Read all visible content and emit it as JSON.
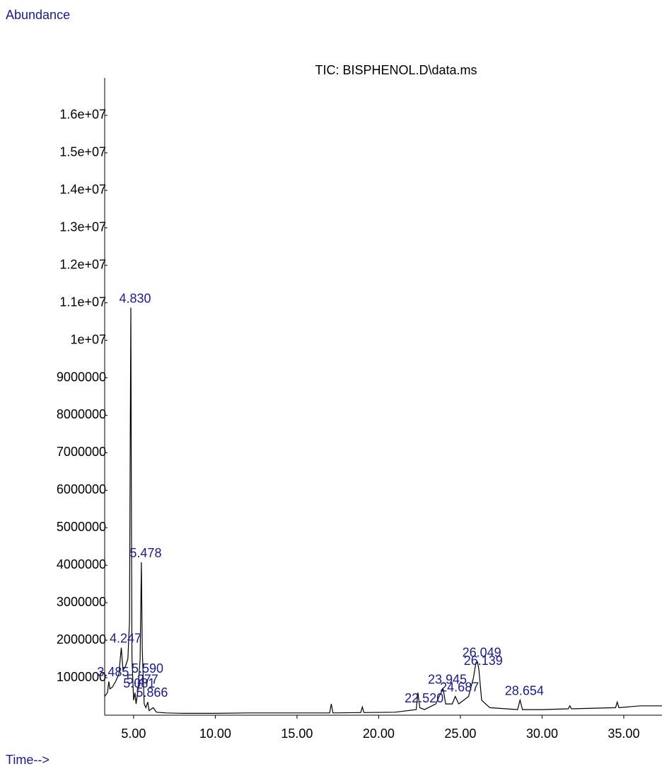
{
  "chart_data": {
    "type": "line",
    "title": "TIC: BISPHENOL.D\\data.ms",
    "ylabel": "Abundance",
    "xlabel": "Time-->",
    "color": "#000000",
    "label_color": "#1a1a8c",
    "x": [
      3.23,
      3.4,
      3.485,
      3.55,
      3.7,
      3.9,
      4.1,
      4.247,
      4.35,
      4.5,
      4.65,
      4.75,
      4.8,
      4.83,
      4.86,
      4.9,
      5.0,
      5.081,
      5.15,
      5.277,
      5.4,
      5.478,
      5.53,
      5.59,
      5.65,
      5.75,
      5.866,
      5.95,
      6.2,
      6.4,
      7,
      8,
      10,
      12,
      15,
      17,
      17.1,
      17.2,
      18.9,
      19.0,
      19.1,
      21,
      22.3,
      22.4,
      22.52,
      22.8,
      23.5,
      23.7,
      23.945,
      24.1,
      24.5,
      24.687,
      24.9,
      25.5,
      25.8,
      25.95,
      26.049,
      26.139,
      26.3,
      26.8,
      28.5,
      28.654,
      28.8,
      30,
      31.6,
      31.7,
      31.8,
      34.5,
      34.6,
      34.7,
      36,
      37.34
    ],
    "values": [
      500000,
      600000,
      900000,
      700000,
      750000,
      900000,
      1100000,
      1800000,
      1200000,
      1300000,
      1500000,
      2500000,
      8000000,
      10870000,
      6000000,
      1500000,
      400000,
      600000,
      300000,
      700000,
      1500000,
      4080000,
      1800000,
      1000000,
      300000,
      200000,
      350000,
      120000,
      200000,
      80000,
      60000,
      50000,
      50000,
      60000,
      60000,
      60000,
      300000,
      60000,
      70000,
      220000,
      70000,
      80000,
      150000,
      600000,
      200000,
      150000,
      300000,
      500000,
      700000,
      300000,
      300000,
      500000,
      300000,
      500000,
      1000000,
      1400000,
      1420000,
      1200000,
      400000,
      200000,
      150000,
      400000,
      150000,
      150000,
      170000,
      250000,
      170000,
      200000,
      350000,
      200000,
      250000,
      250000
    ],
    "annotations": [
      {
        "label": "3.485",
        "x": 3.485,
        "y": 900000
      },
      {
        "label": "4.247",
        "x": 4.247,
        "y": 1800000
      },
      {
        "label": "4.830",
        "x": 4.83,
        "y": 10870000
      },
      {
        "label": "5.081",
        "x": 5.081,
        "y": 600000
      },
      {
        "label": "5.277",
        "x": 5.277,
        "y": 700000
      },
      {
        "label": "5.478",
        "x": 5.478,
        "y": 4080000
      },
      {
        "label": "5.590",
        "x": 5.59,
        "y": 1000000
      },
      {
        "label": "5.866",
        "x": 5.866,
        "y": 350000
      },
      {
        "label": "22.520",
        "x": 22.52,
        "y": 200000
      },
      {
        "label": "23.945",
        "x": 23.945,
        "y": 700000
      },
      {
        "label": "24.687",
        "x": 24.687,
        "y": 500000
      },
      {
        "label": "26.049",
        "x": 26.049,
        "y": 1420000
      },
      {
        "label": "26.139",
        "x": 26.139,
        "y": 1200000
      },
      {
        "label": "28.654",
        "x": 28.654,
        "y": 400000
      }
    ],
    "xlim": [
      3.23,
      37.34
    ],
    "ylim": [
      0,
      17000000
    ],
    "xticks": [
      {
        "value": 5,
        "label": "5.00"
      },
      {
        "value": 10,
        "label": "10.00"
      },
      {
        "value": 15,
        "label": "15.00"
      },
      {
        "value": 20,
        "label": "20.00"
      },
      {
        "value": 25,
        "label": "25.00"
      },
      {
        "value": 30,
        "label": "30.00"
      },
      {
        "value": 35,
        "label": "35.00"
      }
    ],
    "yticks": [
      1000000,
      2000000,
      3000000,
      4000000,
      5000000,
      6000000,
      7000000,
      8000000,
      9000000,
      {
        "value": 10000000,
        "label": "1e+07"
      },
      {
        "value": 11000000,
        "label": "1.1e+07"
      },
      {
        "value": 12000000,
        "label": "1.2e+07"
      },
      {
        "value": 13000000,
        "label": "1.3e+07"
      },
      {
        "value": 14000000,
        "label": "1.4e+07"
      },
      {
        "value": 15000000,
        "label": "1.5e+07"
      },
      {
        "value": 16000000,
        "label": "1.6e+07"
      }
    ]
  }
}
